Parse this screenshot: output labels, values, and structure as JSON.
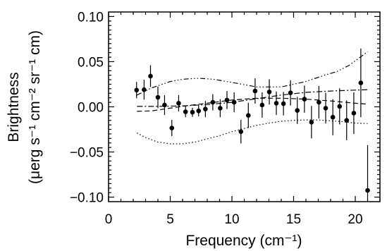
{
  "chart_data": {
    "type": "scatter",
    "xlabel": "Frequency (cm⁻¹)",
    "ylabel_line1": "Brightness",
    "ylabel_line2": "(μerg s⁻¹ cm⁻² sr⁻¹ cm)",
    "xlim": [
      0,
      22
    ],
    "ylim": [
      -0.105,
      0.105
    ],
    "x_ticks": [
      0,
      5,
      10,
      15,
      20
    ],
    "x_tick_labels": [
      "0",
      "5",
      "10",
      "15",
      "20"
    ],
    "y_ticks": [
      -0.1,
      -0.05,
      0.0,
      0.05,
      0.1
    ],
    "y_tick_labels": [
      "−0.10",
      "−0.05",
      "0.00",
      "0.05",
      "0.10"
    ],
    "grid": false,
    "legend": "none",
    "points": [
      {
        "x": 2.27,
        "y": 0.0185,
        "err": 0.009
      },
      {
        "x": 2.88,
        "y": 0.019,
        "err": 0.011
      },
      {
        "x": 3.4,
        "y": 0.034,
        "err": 0.012
      },
      {
        "x": 4.0,
        "y": 0.0105,
        "err": 0.012
      },
      {
        "x": 4.54,
        "y": 0.002,
        "err": 0.011
      },
      {
        "x": 5.13,
        "y": -0.0235,
        "err": 0.009
      },
      {
        "x": 5.68,
        "y": 0.004,
        "err": 0.009
      },
      {
        "x": 6.24,
        "y": -0.0055,
        "err": 0.006
      },
      {
        "x": 6.8,
        "y": -0.006,
        "err": 0.005
      },
      {
        "x": 7.3,
        "y": -0.0045,
        "err": 0.006
      },
      {
        "x": 7.85,
        "y": -0.0025,
        "err": 0.009
      },
      {
        "x": 8.45,
        "y": 0.005,
        "err": 0.009
      },
      {
        "x": 9.05,
        "y": -0.0015,
        "err": 0.01
      },
      {
        "x": 9.6,
        "y": 0.0075,
        "err": 0.01
      },
      {
        "x": 10.18,
        "y": 0.005,
        "err": 0.011
      },
      {
        "x": 10.73,
        "y": -0.0275,
        "err": 0.013
      },
      {
        "x": 11.33,
        "y": -0.0095,
        "err": 0.014
      },
      {
        "x": 11.88,
        "y": 0.0175,
        "err": 0.014
      },
      {
        "x": 12.45,
        "y": 0.002,
        "err": 0.014
      },
      {
        "x": 13.03,
        "y": 0.0165,
        "err": 0.014
      },
      {
        "x": 13.6,
        "y": 0.004,
        "err": 0.013
      },
      {
        "x": 14.18,
        "y": 0.0035,
        "err": 0.013
      },
      {
        "x": 14.75,
        "y": 0.0155,
        "err": 0.014
      },
      {
        "x": 15.3,
        "y": -0.004,
        "err": 0.015
      },
      {
        "x": 15.88,
        "y": 0.0085,
        "err": 0.015
      },
      {
        "x": 16.45,
        "y": -0.017,
        "err": 0.018
      },
      {
        "x": 17.05,
        "y": 0.005,
        "err": 0.018
      },
      {
        "x": 17.6,
        "y": -0.0015,
        "err": 0.017
      },
      {
        "x": 18.18,
        "y": -0.0115,
        "err": 0.02
      },
      {
        "x": 18.73,
        "y": 0.0005,
        "err": 0.02
      },
      {
        "x": 19.3,
        "y": -0.015,
        "err": 0.022
      },
      {
        "x": 19.88,
        "y": -0.007,
        "err": 0.023
      },
      {
        "x": 20.45,
        "y": 0.0265,
        "err": 0.038
      },
      {
        "x": 21.0,
        "y": -0.0925,
        "err": 0.05
      }
    ],
    "curves": [
      {
        "style": "dash-dot-dot-dot",
        "x": [
          2.3,
          3.5,
          5,
          6,
          7,
          7.5,
          8.5,
          10,
          12,
          14,
          16,
          17.5,
          18.5,
          19.5,
          20.5,
          21
        ],
        "y": [
          0.013,
          0.021,
          0.028,
          0.0305,
          0.0315,
          0.0315,
          0.0305,
          0.027,
          0.022,
          0.022,
          0.028,
          0.035,
          0.039,
          0.046,
          0.056,
          0.061
        ]
      },
      {
        "style": "dotted",
        "x": [
          2.3,
          3,
          4,
          5,
          6,
          7,
          8,
          9,
          10,
          11,
          12,
          13,
          14,
          15,
          16,
          17,
          18,
          19,
          20,
          21
        ],
        "y": [
          -0.029,
          -0.034,
          -0.039,
          -0.041,
          -0.041,
          -0.039,
          -0.0355,
          -0.032,
          -0.0275,
          -0.024,
          -0.0205,
          -0.018,
          -0.016,
          -0.015,
          -0.0145,
          -0.0145,
          -0.0155,
          -0.0165,
          -0.018,
          -0.0185
        ]
      },
      {
        "style": "dashed",
        "x": [
          2.3,
          3.5,
          5,
          6.5,
          8,
          10,
          12,
          14,
          16,
          18,
          20,
          21
        ],
        "y": [
          -0.005,
          -0.0045,
          -0.0015,
          0.0015,
          0.004,
          0.0075,
          0.0095,
          0.0095,
          0.0085,
          0.0065,
          0.004,
          0.003
        ]
      },
      {
        "style": "dash-dot",
        "x": [
          2.3,
          4,
          6,
          8,
          10,
          12,
          14,
          16,
          18,
          20,
          21
        ],
        "y": [
          0.0005,
          0.0005,
          0.001,
          0.0025,
          0.005,
          0.009,
          0.013,
          0.016,
          0.0175,
          0.0185,
          0.019
        ]
      }
    ]
  }
}
